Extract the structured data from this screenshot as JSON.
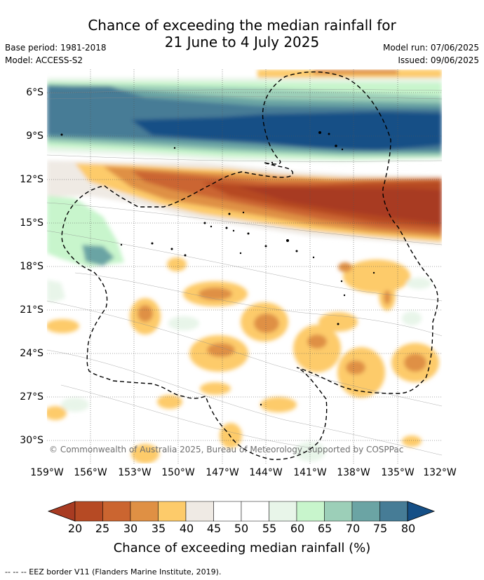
{
  "title": {
    "line1": "Chance of exceeding the median rainfall for",
    "line2": "21 June to 4 July 2025"
  },
  "meta": {
    "base_period": "Base period: 1981-2018",
    "model": "Model: ACCESS-S2",
    "model_run": "Model run: 07/06/2025",
    "issued": "Issued: 09/06/2025"
  },
  "map": {
    "lat_labels": [
      "6°S",
      "9°S",
      "12°S",
      "15°S",
      "18°S",
      "21°S",
      "24°S",
      "27°S",
      "30°S"
    ],
    "lon_labels": [
      "159°W",
      "156°W",
      "153°W",
      "150°W",
      "147°W",
      "144°W",
      "141°W",
      "138°W",
      "135°W",
      "132°W"
    ],
    "copyright": "© Commonwealth of Australia 2025, Bureau of Meteorology, supported by COSPPac"
  },
  "colorbar": {
    "ticks": [
      "20",
      "25",
      "30",
      "35",
      "40",
      "45",
      "50",
      "55",
      "60",
      "65",
      "70",
      "75",
      "80"
    ],
    "colors": [
      "#a83b22",
      "#b64a24",
      "#cb6530",
      "#df9044",
      "#fdcb6a",
      "#efeae4",
      "#ffffff",
      "#ffffff",
      "#e8f5e9",
      "#c8f5cc",
      "#9ccfb8",
      "#6ba4a4",
      "#467c96",
      "#154f86"
    ],
    "label": "Chance of exceeding median rainfall (%)"
  },
  "footnote": "--  --  -- EEZ border V11 (Flanders Marine Institute, 2019)."
}
